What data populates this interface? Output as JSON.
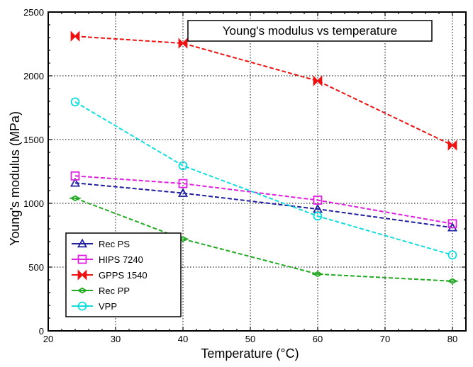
{
  "chart_data": {
    "type": "line",
    "title": "Young's modulus vs temperature",
    "xlabel": "Temperature (°C)",
    "ylabel": "Young's modulus (MPa)",
    "xlim": [
      20,
      82
    ],
    "ylim": [
      0,
      2500
    ],
    "xticks": [
      20,
      30,
      40,
      50,
      60,
      70,
      80
    ],
    "yticks": [
      0,
      500,
      1000,
      1500,
      2000,
      2500
    ],
    "grid": true,
    "legend_position": "bottom-left",
    "series": [
      {
        "name": "Rec PS",
        "color": "#1f1fa0",
        "marker": "triangle",
        "x": [
          24,
          40,
          60,
          80
        ],
        "y": [
          1160,
          1080,
          955,
          810
        ]
      },
      {
        "name": "HIPS 7240",
        "color": "#e020e0",
        "marker": "square",
        "x": [
          24,
          40,
          60,
          80
        ],
        "y": [
          1215,
          1155,
          1025,
          840
        ]
      },
      {
        "name": "GPPS 1540",
        "color": "#ee1111",
        "marker": "bowtie",
        "x": [
          24,
          40,
          60,
          80
        ],
        "y": [
          2310,
          2255,
          1960,
          1455
        ]
      },
      {
        "name": "Rec PP",
        "color": "#22aa22",
        "marker": "diamond",
        "x": [
          24,
          40,
          60,
          80
        ],
        "y": [
          1040,
          720,
          445,
          390
        ]
      },
      {
        "name": "VPP",
        "color": "#11dddd",
        "marker": "circle",
        "x": [
          24,
          40,
          60,
          80
        ],
        "y": [
          1795,
          1295,
          900,
          595
        ]
      }
    ]
  }
}
